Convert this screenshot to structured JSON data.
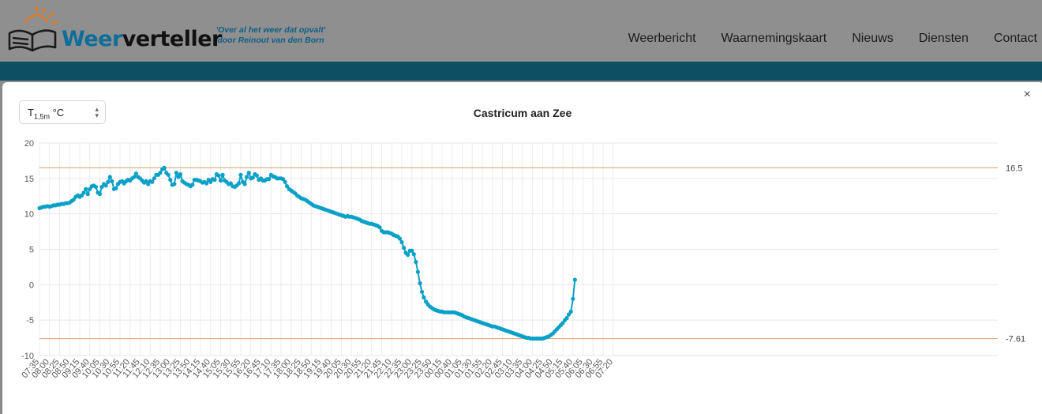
{
  "site": {
    "brand_part1": "Weer",
    "brand_part2": "verteller",
    "tagline_line1": "'Over al het weer dat opvalt'",
    "tagline_line2": "door Reinout van den Born",
    "logo_icon": "sun-book-icon"
  },
  "nav": {
    "items": [
      "Weerbericht",
      "Waarnemingskaart",
      "Nieuws",
      "Diensten",
      "Contact"
    ]
  },
  "colors": {
    "series": "#0aa0c8",
    "reference": "#e0a06a",
    "brand_blue": "#0d6e9a",
    "header_teal": "#0e4f63"
  },
  "selector": {
    "main": "T",
    "sub": "1,5m",
    "unit": "°C"
  },
  "modal": {
    "close_label": "×"
  },
  "chart_data": {
    "type": "line",
    "title": "Castricum aan Zee",
    "ylim": [
      -10,
      20
    ],
    "yticks": [
      20,
      15,
      10,
      5,
      0,
      -5,
      -10
    ],
    "grid": true,
    "legend": "none",
    "xtick_labels": [
      "07:35",
      "08:00",
      "08:25",
      "08:50",
      "09:15",
      "09:40",
      "10:05",
      "10:30",
      "10:55",
      "11:20",
      "11:45",
      "12:10",
      "12:35",
      "13:00",
      "13:25",
      "13:50",
      "14:15",
      "14:40",
      "15:05",
      "15:30",
      "15:55",
      "16:20",
      "16:45",
      "17:10",
      "17:35",
      "18:00",
      "18:25",
      "18:50",
      "19:15",
      "19:40",
      "20:05",
      "20:30",
      "20:55",
      "21:20",
      "21:45",
      "22:10",
      "22:35",
      "23:00",
      "23:25",
      "23:50",
      "00:15",
      "00:40",
      "01:05",
      "01:30",
      "01:55",
      "02:20",
      "02:45",
      "03:10",
      "03:35",
      "04:00",
      "04:25",
      "04:50",
      "05:15",
      "05:40",
      "06:05",
      "06:30",
      "06:55",
      "07:20"
    ],
    "reference_lines": [
      {
        "value": 16.5,
        "label": "16.5"
      },
      {
        "value": -7.61,
        "label": "-7.61"
      }
    ],
    "series": [
      {
        "step_minutes": 5,
        "values": [
          10.8,
          10.9,
          11.0,
          11.0,
          11.1,
          11.0,
          11.1,
          11.2,
          11.2,
          11.3,
          11.3,
          11.4,
          11.4,
          11.5,
          11.5,
          11.6,
          11.8,
          12.0,
          12.4,
          12.6,
          12.4,
          12.6,
          13.0,
          13.5,
          12.8,
          13.5,
          13.9,
          14.0,
          13.8,
          13.0,
          12.8,
          13.8,
          14.2,
          14.0,
          14.5,
          15.2,
          14.6,
          13.5,
          13.6,
          14.2,
          14.5,
          14.6,
          14.3,
          14.6,
          14.8,
          14.7,
          15.0,
          15.2,
          15.7,
          15.2,
          15.0,
          14.7,
          14.4,
          14.6,
          14.2,
          14.6,
          14.5,
          15.0,
          15.5,
          15.5,
          15.8,
          16.3,
          16.5,
          15.8,
          15.5,
          14.8,
          14.1,
          14.2,
          15.8,
          15.2,
          15.6,
          14.6,
          14.4,
          14.2,
          14.1,
          13.9,
          14.1,
          14.8,
          14.8,
          14.7,
          14.6,
          14.4,
          14.5,
          14.3,
          14.8,
          14.5,
          14.9,
          14.8,
          15.6,
          15.4,
          14.7,
          15.5,
          14.7,
          14.5,
          14.2,
          14.3,
          13.9,
          13.8,
          14.0,
          14.3,
          15.5,
          14.5,
          14.2,
          15.2,
          15.8,
          15.0,
          15.1,
          15.6,
          15.4,
          14.8,
          15.0,
          14.7,
          14.7,
          14.9,
          14.9,
          15.5,
          15.3,
          15.2,
          15.0,
          15.0,
          15.0,
          14.9,
          14.5,
          13.9,
          13.5,
          13.3,
          13.1,
          12.9,
          12.6,
          12.4,
          12.2,
          12.1,
          12.0,
          11.8,
          11.6,
          11.4,
          11.2,
          11.1,
          11.0,
          10.9,
          10.8,
          10.7,
          10.6,
          10.5,
          10.4,
          10.3,
          10.2,
          10.1,
          10.0,
          9.9,
          9.8,
          9.7,
          9.6,
          9.7,
          9.6,
          9.6,
          9.5,
          9.4,
          9.3,
          9.2,
          9.0,
          8.9,
          8.8,
          8.7,
          8.6,
          8.6,
          8.5,
          8.4,
          8.3,
          8.1,
          7.6,
          7.4,
          7.4,
          7.4,
          7.3,
          7.2,
          7.0,
          6.9,
          6.8,
          6.5,
          6.0,
          5.2,
          4.5,
          4.2,
          4.8,
          4.8,
          4.3,
          3.2,
          1.8,
          0.2,
          -1.0,
          -1.8,
          -2.4,
          -2.8,
          -3.1,
          -3.3,
          -3.5,
          -3.6,
          -3.7,
          -3.8,
          -3.8,
          -3.9,
          -3.9,
          -3.9,
          -3.9,
          -3.9,
          -3.9,
          -4.0,
          -4.1,
          -4.2,
          -4.3,
          -4.5,
          -4.6,
          -4.7,
          -4.8,
          -4.9,
          -5.0,
          -5.1,
          -5.2,
          -5.3,
          -5.4,
          -5.5,
          -5.6,
          -5.7,
          -5.8,
          -5.9,
          -5.9,
          -6.0,
          -6.1,
          -6.2,
          -6.3,
          -6.4,
          -6.5,
          -6.6,
          -6.7,
          -6.8,
          -6.9,
          -7.0,
          -7.1,
          -7.2,
          -7.3,
          -7.4,
          -7.5,
          -7.5,
          -7.6,
          -7.6,
          -7.6,
          -7.6,
          -7.6,
          -7.6,
          -7.6,
          -7.5,
          -7.4,
          -7.3,
          -7.1,
          -6.9,
          -6.6,
          -6.3,
          -6.0,
          -5.7,
          -5.4,
          -5.0,
          -4.7,
          -4.2,
          -3.8,
          -2.0,
          0.7
        ]
      }
    ]
  }
}
